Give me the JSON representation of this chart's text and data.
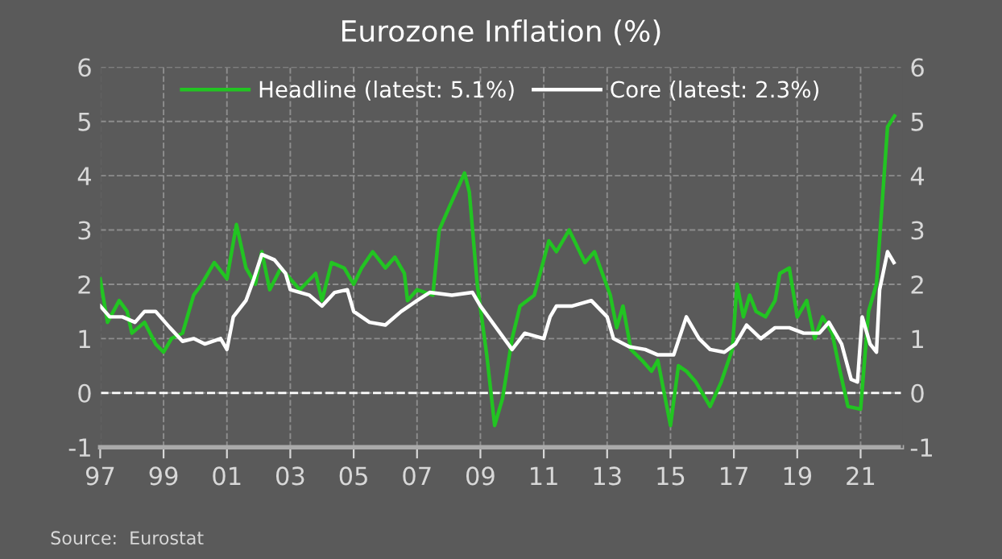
{
  "chart_data": {
    "type": "line",
    "title": "Eurozone Inflation (%)",
    "xlim": [
      1997,
      2022.3
    ],
    "xticks": [
      {
        "value": 1997,
        "label": "97"
      },
      {
        "value": 1999,
        "label": "99"
      },
      {
        "value": 2001,
        "label": "01"
      },
      {
        "value": 2003,
        "label": "03"
      },
      {
        "value": 2005,
        "label": "05"
      },
      {
        "value": 2007,
        "label": "07"
      },
      {
        "value": 2009,
        "label": "09"
      },
      {
        "value": 2011,
        "label": "11"
      },
      {
        "value": 2013,
        "label": "13"
      },
      {
        "value": 2015,
        "label": "15"
      },
      {
        "value": 2017,
        "label": "17"
      },
      {
        "value": 2019,
        "label": "19"
      },
      {
        "value": 2021,
        "label": "21"
      }
    ],
    "ylim": [
      -1,
      6
    ],
    "yticks": [
      -1,
      0,
      1,
      2,
      3,
      4,
      5,
      6
    ],
    "y2lim": [
      -1,
      6
    ],
    "y2ticks": [
      -1,
      0,
      1,
      2,
      3,
      4,
      5,
      6
    ],
    "grid": true,
    "legend": "top",
    "line_style": "solid",
    "marker": "none",
    "ref_lines": [
      {
        "axis": "y",
        "value": 0,
        "color": "#ffffff",
        "line_style": "dashed"
      }
    ],
    "annotations": [
      "Source:  Eurostat"
    ],
    "series": [
      {
        "name": "Headline (latest: 5.1%)",
        "color": "#22c422",
        "x": [
          1997.0,
          1997.23,
          1997.6,
          1997.85,
          1998.0,
          1998.4,
          1998.75,
          1999.0,
          1999.25,
          1999.6,
          1999.95,
          2000.2,
          2000.6,
          2001.0,
          2001.3,
          2001.6,
          2001.9,
          2002.1,
          2002.35,
          2002.7,
          2003.0,
          2003.3,
          2003.8,
          2004.0,
          2004.3,
          2004.7,
          2005.0,
          2005.25,
          2005.6,
          2006.0,
          2006.3,
          2006.6,
          2006.7,
          2007.0,
          2007.5,
          2007.7,
          2008.0,
          2008.5,
          2008.65,
          2008.9,
          2009.2,
          2009.45,
          2009.7,
          2010.0,
          2010.25,
          2010.7,
          2011.16,
          2011.4,
          2011.8,
          2012.05,
          2012.3,
          2012.6,
          2012.85,
          2013.1,
          2013.3,
          2013.5,
          2013.75,
          2014.1,
          2014.4,
          2014.6,
          2015.0,
          2015.25,
          2015.5,
          2015.8,
          2016.25,
          2016.6,
          2016.95,
          2017.1,
          2017.3,
          2017.5,
          2017.7,
          2018.0,
          2018.3,
          2018.45,
          2018.75,
          2019.0,
          2019.3,
          2019.55,
          2019.8,
          2020.1,
          2020.35,
          2020.6,
          2021.0,
          2021.25,
          2021.5,
          2021.85,
          2022.07
        ],
        "values": [
          2.1,
          1.3,
          1.7,
          1.5,
          1.1,
          1.3,
          0.9,
          0.75,
          1.0,
          1.1,
          1.8,
          2.0,
          2.4,
          2.1,
          3.1,
          2.3,
          2.0,
          2.6,
          1.9,
          2.3,
          2.1,
          1.9,
          2.2,
          1.7,
          2.4,
          2.3,
          2.0,
          2.3,
          2.6,
          2.3,
          2.5,
          2.2,
          1.7,
          1.9,
          1.8,
          3.0,
          3.4,
          4.05,
          3.7,
          2.0,
          0.7,
          -0.6,
          -0.1,
          1.0,
          1.6,
          1.8,
          2.8,
          2.6,
          3.0,
          2.7,
          2.4,
          2.6,
          2.2,
          1.8,
          1.2,
          1.6,
          0.8,
          0.6,
          0.4,
          0.6,
          -0.6,
          0.5,
          0.4,
          0.2,
          -0.25,
          0.2,
          0.8,
          2.0,
          1.4,
          1.8,
          1.5,
          1.4,
          1.7,
          2.2,
          2.3,
          1.4,
          1.7,
          1.0,
          1.4,
          1.1,
          0.4,
          -0.25,
          -0.3,
          1.5,
          2.0,
          4.9,
          5.1
        ]
      },
      {
        "name": "Core (latest: 2.3%)",
        "color": "#ffffff",
        "x": [
          1997.0,
          1997.3,
          1997.7,
          1998.1,
          1998.4,
          1998.75,
          1999.2,
          1999.6,
          1999.95,
          2000.3,
          2000.8,
          2001.0,
          2001.2,
          2001.6,
          2001.85,
          2002.1,
          2002.5,
          2002.85,
          2003.0,
          2003.6,
          2004.0,
          2004.4,
          2004.8,
          2005.0,
          2005.5,
          2006.0,
          2006.5,
          2007.0,
          2007.4,
          2008.1,
          2008.75,
          2009.0,
          2009.5,
          2010.0,
          2010.4,
          2011.0,
          2011.2,
          2011.4,
          2011.9,
          2012.5,
          2013.0,
          2013.2,
          2013.7,
          2014.2,
          2014.6,
          2015.1,
          2015.5,
          2015.9,
          2016.25,
          2016.7,
          2017.05,
          2017.4,
          2017.85,
          2018.3,
          2018.75,
          2019.2,
          2019.7,
          2020.0,
          2020.4,
          2020.7,
          2020.9,
          2021.05,
          2021.3,
          2021.5,
          2021.6,
          2021.85,
          2022.05
        ],
        "values": [
          1.6,
          1.4,
          1.4,
          1.3,
          1.5,
          1.5,
          1.2,
          0.95,
          1.0,
          0.9,
          1.0,
          0.8,
          1.4,
          1.7,
          2.1,
          2.55,
          2.45,
          2.2,
          1.9,
          1.8,
          1.6,
          1.85,
          1.9,
          1.5,
          1.3,
          1.25,
          1.5,
          1.7,
          1.85,
          1.8,
          1.85,
          1.6,
          1.2,
          0.8,
          1.1,
          1.0,
          1.4,
          1.6,
          1.6,
          1.7,
          1.4,
          1.0,
          0.85,
          0.8,
          0.7,
          0.7,
          1.4,
          1.0,
          0.8,
          0.75,
          0.9,
          1.25,
          1.0,
          1.2,
          1.2,
          1.1,
          1.1,
          1.3,
          0.9,
          0.25,
          0.2,
          1.4,
          0.9,
          0.75,
          1.9,
          2.6,
          2.4
        ]
      }
    ]
  }
}
